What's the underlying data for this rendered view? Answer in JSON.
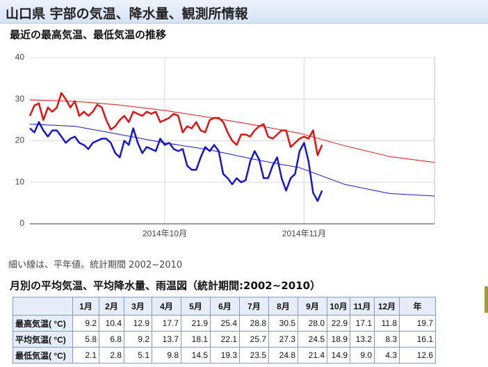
{
  "header": {
    "title": "山口県 宇部の気温、降水量、観測所情報"
  },
  "section1": {
    "title": "最近の最高気温、最低気温の推移"
  },
  "chart_data": {
    "type": "line",
    "xlim": [
      0,
      90
    ],
    "xticks": [
      {
        "value": 30,
        "label": "2014年10月"
      },
      {
        "value": 61,
        "label": "2014年11月"
      }
    ],
    "ylim": [
      0,
      40
    ],
    "yticks": [
      0,
      10,
      20,
      30,
      40
    ],
    "grid": true,
    "series": [
      {
        "color": "#e01010",
        "line_width": 2.5,
        "values": [
          26,
          28.5,
          29,
          25,
          28,
          27,
          28,
          31.5,
          30,
          28,
          29.5,
          26,
          27,
          26,
          27,
          28.7,
          28,
          25,
          22.7,
          23.5,
          25,
          26,
          24.5,
          27,
          26.5,
          26,
          27,
          26.5,
          27,
          24.5,
          25,
          25.5,
          26.5,
          26,
          22,
          23.5,
          23,
          24.5,
          22.5,
          22,
          25,
          25.5,
          25.5,
          24.5,
          22,
          20,
          19,
          21.5,
          21.5,
          21,
          22.5,
          23.5,
          24,
          21,
          20.5,
          21.5,
          22.5,
          22.5,
          18.5,
          19.5,
          20.5,
          21,
          20.5,
          22.5,
          16.5,
          19
        ]
      },
      {
        "color": "#1414c8",
        "line_width": 2.5,
        "values": [
          23,
          22,
          24.5,
          22.5,
          21,
          22.5,
          22.5,
          21,
          19.5,
          20.5,
          21,
          19.5,
          19,
          18,
          19.5,
          20,
          20.5,
          20.5,
          19.5,
          17,
          16,
          20,
          19,
          23,
          19.5,
          17,
          18.5,
          18,
          17.5,
          20.5,
          19,
          19.5,
          18,
          17.5,
          18,
          14,
          13,
          13,
          16,
          18.5,
          17.5,
          19,
          17.5,
          12,
          11,
          9.5,
          11,
          10,
          10.5,
          15,
          17.5,
          15.5,
          11,
          11,
          14,
          16,
          11,
          8,
          11,
          12,
          17.5,
          19.5,
          15,
          7.5,
          5.5,
          8
        ]
      },
      {
        "color": "#e01010",
        "line_width": 1,
        "x": [
          0,
          10,
          20,
          30,
          40,
          50,
          60,
          70,
          80,
          90
        ],
        "values": [
          29.8,
          29.5,
          28.6,
          27.3,
          25.6,
          23.8,
          21.8,
          18.8,
          16.2,
          14.8
        ]
      },
      {
        "color": "#1414c8",
        "line_width": 1,
        "x": [
          0,
          10,
          20,
          30,
          40,
          50,
          60,
          70,
          80,
          90
        ],
        "values": [
          24,
          23.5,
          21.5,
          19.5,
          17.8,
          15.5,
          13.5,
          9.5,
          7.3,
          6.7
        ]
      }
    ]
  },
  "note": "細い線は、平年値。統計期間 2002~2010",
  "section2": {
    "title": "月別の平均気温、平均降水量、雨温図（統計期間:2002~2010）"
  },
  "table": {
    "columns": [
      "1月",
      "2月",
      "3月",
      "4月",
      "5月",
      "6月",
      "7月",
      "8月",
      "9月",
      "10月",
      "11月",
      "12月",
      "年"
    ],
    "rows": [
      [
        "最高気温( °C)",
        "9.2",
        "10.4",
        "12.9",
        "17.7",
        "21.9",
        "25.4",
        "28.8",
        "30.5",
        "28.0",
        "22.9",
        "17.1",
        "11.8",
        "19.7"
      ],
      [
        "平均気温( °C)",
        "5.8",
        "6.8",
        "9.2",
        "13.7",
        "18.1",
        "22.1",
        "25.7",
        "27.3",
        "24.5",
        "18.9",
        "13.2",
        "8.3",
        "16.1"
      ],
      [
        "最低気温( °C)",
        "2.1",
        "2.8",
        "5.1",
        "9.8",
        "14.5",
        "19.3",
        "23.5",
        "24.8",
        "21.4",
        "14.9",
        "9.0",
        "4.3",
        "12.6"
      ]
    ]
  }
}
